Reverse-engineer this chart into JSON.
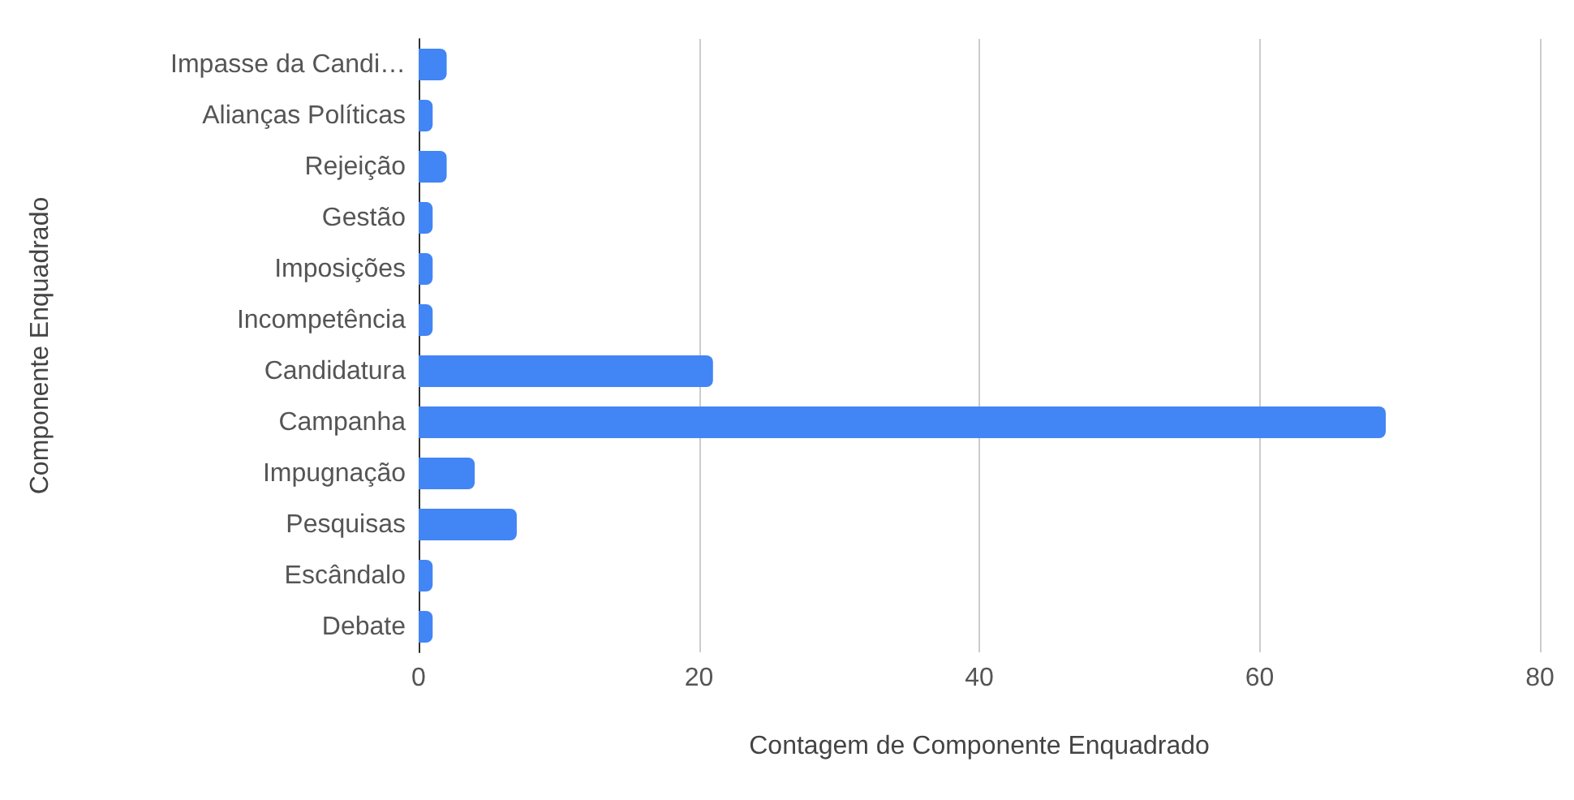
{
  "chart_data": {
    "type": "bar",
    "orientation": "horizontal",
    "xlabel": "Contagem de Componente Enquadrado",
    "ylabel": "Componente Enquadrado",
    "categories": [
      "Impasse da Candi…",
      "Alianças Políticas",
      "Rejeição",
      "Gestão",
      "Imposições",
      "Incompetência",
      "Candidatura",
      "Campanha",
      "Impugnação",
      "Pesquisas",
      "Escândalo",
      "Debate"
    ],
    "values": [
      2,
      1,
      2,
      1,
      1,
      1,
      21,
      69,
      4,
      7,
      1,
      1
    ],
    "color": "#4285f4",
    "xlim": [
      0,
      80
    ],
    "xticks": [
      0,
      20,
      40,
      60,
      80
    ],
    "grid": "x"
  }
}
